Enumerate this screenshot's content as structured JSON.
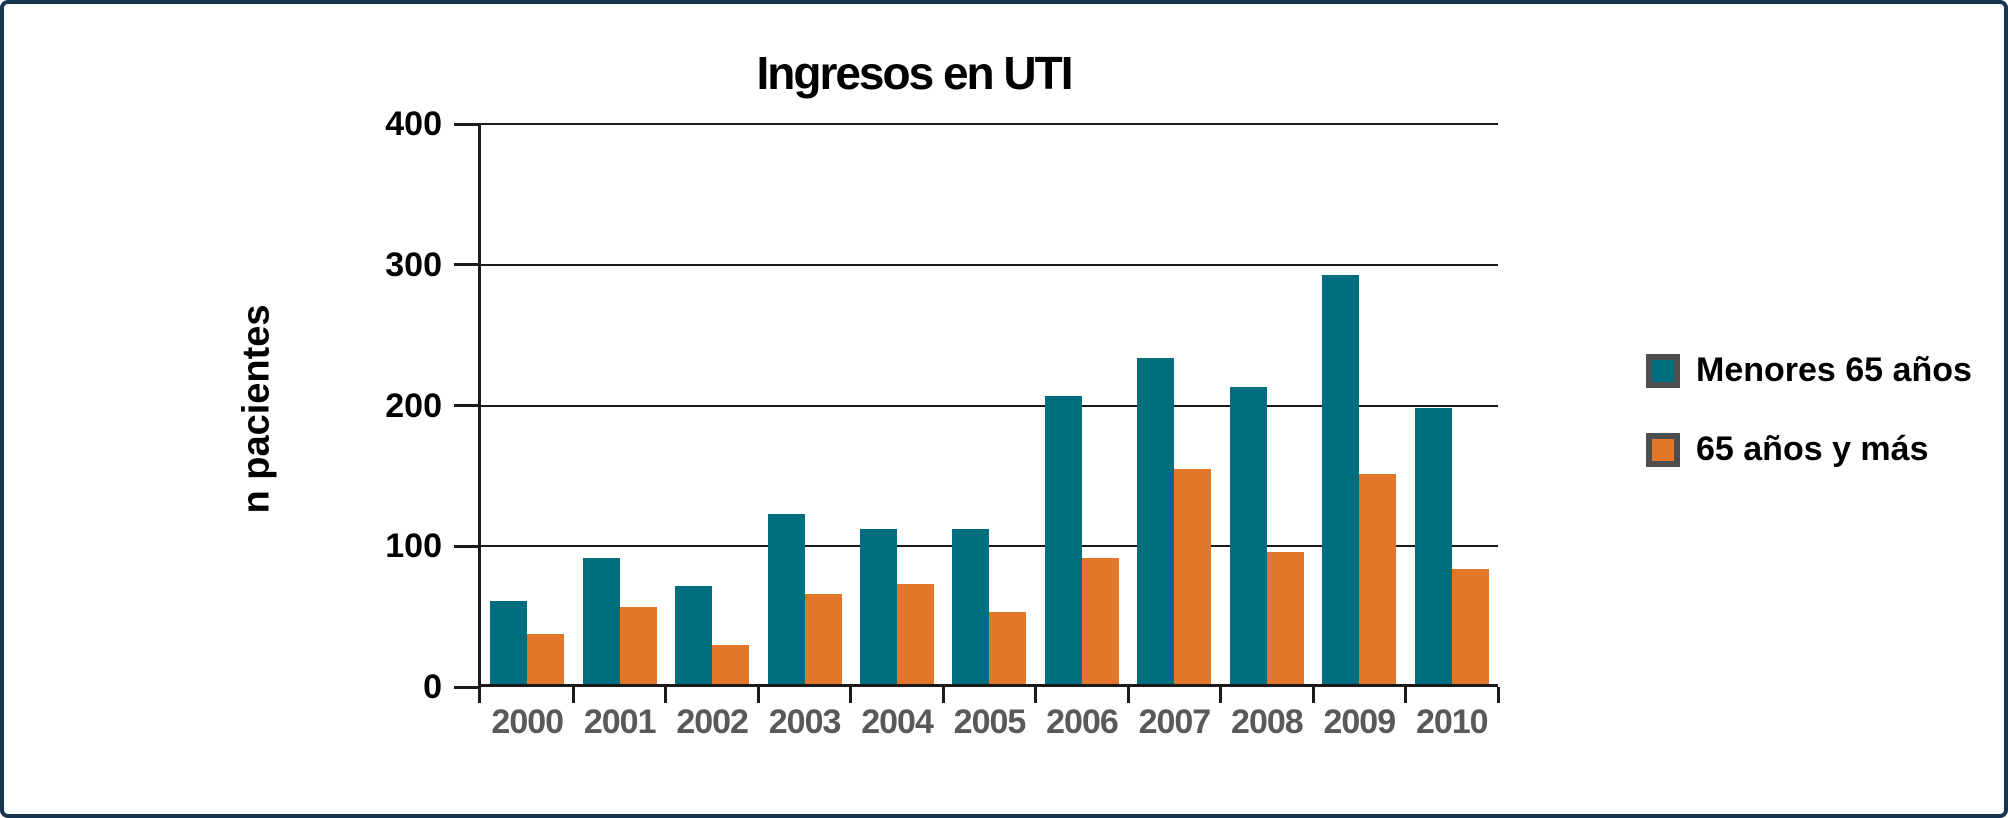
{
  "figure": {
    "border_color": "#16334F",
    "background_color": "#FFFFFF",
    "axis_color": "#1A1A1A",
    "x_tick_label_color": "#58595B",
    "y_tick_label_color": "#000000",
    "legend_swatch_border_color": "#4D4E50"
  },
  "chart_data": {
    "type": "bar",
    "title": "Ingresos en UTI",
    "xlabel": "",
    "ylabel": "n pacientes",
    "categories": [
      "2000",
      "2001",
      "2002",
      "2003",
      "2004",
      "2005",
      "2006",
      "2007",
      "2008",
      "2009",
      "2010"
    ],
    "series": [
      {
        "name": "Menores 65 años",
        "color": "#006E7E",
        "values": [
          61,
          92,
          72,
          123,
          112,
          112,
          207,
          234,
          213,
          293,
          198
        ]
      },
      {
        "name": "65 años y más",
        "color": "#E2762A",
        "values": [
          38,
          57,
          30,
          66,
          73,
          53,
          92,
          155,
          96,
          151,
          84
        ]
      }
    ],
    "ylim": [
      0,
      400
    ],
    "yticks": [
      0,
      100,
      200,
      300,
      400
    ],
    "grid": "horizontal",
    "legend_position": "right"
  }
}
